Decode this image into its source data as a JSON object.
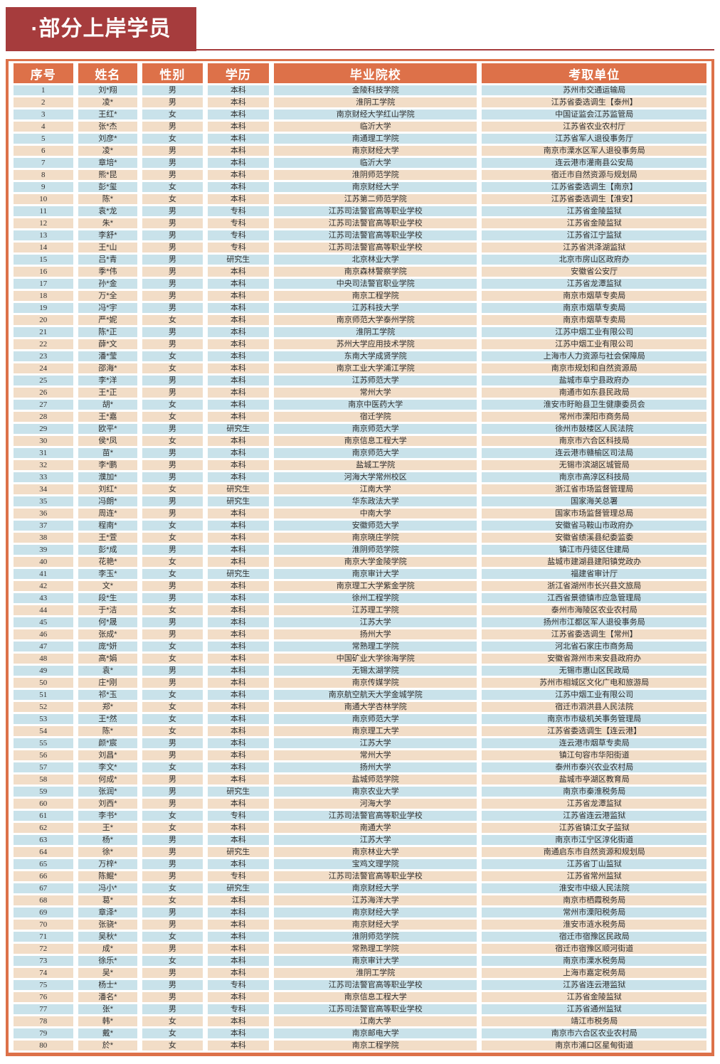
{
  "page_title": {
    "text": "·部分上岸学员"
  },
  "colors": {
    "banner_red": "#A63C3D",
    "header_orange": "#DD7149",
    "row_blue": "#C9E2EA",
    "row_peach": "#F2DDC7",
    "text_dark": "#303030"
  },
  "table": {
    "columns": [
      "序号",
      "姓名",
      "性别",
      "学历",
      "毕业院校",
      "考取单位"
    ],
    "column_widths": [
      "8.9%",
      "8.9%",
      "9.0%",
      "9.2%",
      "30.4%",
      "33.6%"
    ],
    "rows": [
      [
        "1",
        "刘*翔",
        "男",
        "本科",
        "金陵科技学院",
        "苏州市交通运输局"
      ],
      [
        "2",
        "凌*",
        "男",
        "本科",
        "淮阴工学院",
        "江苏省委选调生【泰州】"
      ],
      [
        "3",
        "王红*",
        "女",
        "本科",
        "南京财经大学红山学院",
        "中国证监会江苏监管局"
      ],
      [
        "4",
        "张*杰",
        "男",
        "本科",
        "临沂大学",
        "江苏省农业农村厅"
      ],
      [
        "5",
        "刘彦*",
        "女",
        "本科",
        "南通理工学院",
        "江苏省军人退役事务厅"
      ],
      [
        "6",
        "凌*",
        "男",
        "本科",
        "南京财经大学",
        "南京市溧水区军人退役事务局"
      ],
      [
        "7",
        "章培*",
        "男",
        "本科",
        "临沂大学",
        "连云港市灌南县公安局"
      ],
      [
        "8",
        "熊*昆",
        "男",
        "本科",
        "淮阴师范学院",
        "宿迁市自然资源与规划局"
      ],
      [
        "9",
        "彭*玺",
        "女",
        "本科",
        "南京财经大学",
        "江苏省委选调生【南京】"
      ],
      [
        "10",
        "陈*",
        "女",
        "本科",
        "江苏第二师范学院",
        "江苏省委选调生【淮安】"
      ],
      [
        "11",
        "袁*龙",
        "男",
        "专科",
        "江苏司法警官高等职业学校",
        "江苏省金陵监狱"
      ],
      [
        "12",
        "朱*",
        "男",
        "专科",
        "江苏司法警官高等职业学校",
        "江苏省金陵监狱"
      ],
      [
        "13",
        "李舒*",
        "男",
        "专科",
        "江苏司法警官高等职业学校",
        "江苏省江宁监狱"
      ],
      [
        "14",
        "王*山",
        "男",
        "专科",
        "江苏司法警官高等职业学校",
        "江苏省洪泽湖监狱"
      ],
      [
        "15",
        "吕*青",
        "男",
        "研究生",
        "北京林业大学",
        "北京市房山区政府办"
      ],
      [
        "16",
        "季*伟",
        "男",
        "本科",
        "南京森林警察学院",
        "安徽省公安厅"
      ],
      [
        "17",
        "孙*金",
        "男",
        "本科",
        "中央司法警官职业学院",
        "江苏省龙潭监狱"
      ],
      [
        "18",
        "万*全",
        "男",
        "本科",
        "南京工程学院",
        "南京市烟草专卖局"
      ],
      [
        "19",
        "冯*宇",
        "男",
        "本科",
        "江苏科技大学",
        "南京市烟草专卖局"
      ],
      [
        "20",
        "严*妮",
        "女",
        "本科",
        "南京师范大学泰州学院",
        "南京市烟草专卖局"
      ],
      [
        "21",
        "陈*正",
        "男",
        "本科",
        "淮阴工学院",
        "江苏中烟工业有限公司"
      ],
      [
        "22",
        "薛*文",
        "男",
        "本科",
        "苏州大学应用技术学院",
        "江苏中烟工业有限公司"
      ],
      [
        "23",
        "潘*莹",
        "女",
        "本科",
        "东南大学成贤学院",
        "上海市人力资源与社会保障局"
      ],
      [
        "24",
        "邵海*",
        "女",
        "本科",
        "南京工业大学浦江学院",
        "南京市规划和自然资源局"
      ],
      [
        "25",
        "李*洋",
        "男",
        "本科",
        "江苏师范大学",
        "盐城市阜宁县政府办"
      ],
      [
        "26",
        "王*正",
        "男",
        "本科",
        "常州大学",
        "南通市如东县民政局"
      ],
      [
        "27",
        "胡*",
        "女",
        "本科",
        "南京中医药大学",
        "淮安市盱眙县卫生健康委员会"
      ],
      [
        "28",
        "王*嘉",
        "女",
        "本科",
        "宿迁学院",
        "常州市溧阳市商务局"
      ],
      [
        "29",
        "欧平*",
        "男",
        "研究生",
        "南京师范大学",
        "徐州市鼓楼区人民法院"
      ],
      [
        "30",
        "侯*凤",
        "女",
        "本科",
        "南京信息工程大学",
        "南京市六合区科技局"
      ],
      [
        "31",
        "苗*",
        "男",
        "本科",
        "南京师范大学",
        "连云港市赣榆区司法局"
      ],
      [
        "32",
        "李*鹏",
        "男",
        "本科",
        "盐城工学院",
        "无锡市滨湖区城管局"
      ],
      [
        "33",
        "濮加*",
        "男",
        "本科",
        "河海大学常州校区",
        "南京市高淳区科技局"
      ],
      [
        "34",
        "刘红*",
        "女",
        "研究生",
        "江南大学",
        "浙江省市场监督管理局"
      ],
      [
        "35",
        "冯朗*",
        "男",
        "研究生",
        "华东政法大学",
        "国家海关总署"
      ],
      [
        "36",
        "周连*",
        "男",
        "本科",
        "中南大学",
        "国家市场监督管理总局"
      ],
      [
        "37",
        "程南*",
        "女",
        "本科",
        "安徽师范大学",
        "安徽省马鞍山市政府办"
      ],
      [
        "38",
        "王*萱",
        "女",
        "本科",
        "南京晓庄学院",
        "安徽省绩溪县纪委监委"
      ],
      [
        "39",
        "彭*成",
        "男",
        "本科",
        "淮阴师范学院",
        "镇江市丹徒区住建局"
      ],
      [
        "40",
        "花艳*",
        "女",
        "本科",
        "南京大学金陵学院",
        "盐城市建湖县建阳镇党政办"
      ],
      [
        "41",
        "李玉*",
        "女",
        "研究生",
        "南京审计大学",
        "福建省审计厅"
      ],
      [
        "42",
        "文*",
        "男",
        "本科",
        "南京理工大学紫金学院",
        "浙江省湖州市长兴县文旅局"
      ],
      [
        "43",
        "段*生",
        "男",
        "本科",
        "徐州工程学院",
        "江西省景德镇市应急管理局"
      ],
      [
        "44",
        "于*洁",
        "女",
        "本科",
        "江苏理工学院",
        "泰州市海陵区农业农村局"
      ],
      [
        "45",
        "何*晟",
        "男",
        "本科",
        "江苏大学",
        "扬州市江都区军人退役事务局"
      ],
      [
        "46",
        "张成*",
        "男",
        "本科",
        "扬州大学",
        "江苏省委选调生【常州】"
      ],
      [
        "47",
        "庞*妍",
        "女",
        "本科",
        "常熟理工学院",
        "河北省石家庄市商务局"
      ],
      [
        "48",
        "高*娟",
        "女",
        "本科",
        "中国矿业大学徐海学院",
        "安徽省滁州市来安县政府办"
      ],
      [
        "49",
        "袁*",
        "男",
        "本科",
        "无锡太湖学院",
        "无锡市惠山区民政局"
      ],
      [
        "50",
        "庄*刚",
        "男",
        "本科",
        "南京传媒学院",
        "苏州市相城区文化广电和旅游局"
      ],
      [
        "51",
        "祁*玉",
        "女",
        "本科",
        "南京航空航天大学金城学院",
        "江苏中烟工业有限公司"
      ],
      [
        "52",
        "郑*",
        "女",
        "本科",
        "南通大学杏林学院",
        "宿迁市泗洪县人民法院"
      ],
      [
        "53",
        "王*然",
        "女",
        "本科",
        "南京师范大学",
        "南京市市级机关事务管理局"
      ],
      [
        "54",
        "陈*",
        "女",
        "本科",
        "南京理工大学",
        "江苏省委选调生【连云港】"
      ],
      [
        "55",
        "颜*宸",
        "男",
        "本科",
        "江苏大学",
        "连云港市烟草专卖局"
      ],
      [
        "56",
        "刘昌*",
        "男",
        "本科",
        "常州大学",
        "镇江句容市华阳街道"
      ],
      [
        "57",
        "李文*",
        "女",
        "本科",
        "扬州大学",
        "泰州市泰兴农业农村局"
      ],
      [
        "58",
        "何成*",
        "男",
        "本科",
        "盐城师范学院",
        "盐城市亭湖区教育局"
      ],
      [
        "59",
        "张润*",
        "男",
        "研究生",
        "南京农业大学",
        "南京市秦淮税务局"
      ],
      [
        "60",
        "刘西*",
        "男",
        "本科",
        "河海大学",
        "江苏省龙潭监狱"
      ],
      [
        "61",
        "李书*",
        "女",
        "专科",
        "江苏司法警官高等职业学校",
        "江苏省连云港监狱"
      ],
      [
        "62",
        "王*",
        "女",
        "本科",
        "南通大学",
        "江苏省镇江女子监狱"
      ],
      [
        "63",
        "杨*",
        "男",
        "本科",
        "江苏大学",
        "南京市江宁区淳化街道"
      ],
      [
        "64",
        "徐*",
        "男",
        "研究生",
        "南京林业大学",
        "南通启东市自然资源和规划局"
      ],
      [
        "65",
        "万梓*",
        "男",
        "本科",
        "宝鸡文理学院",
        "江苏省丁山监狱"
      ],
      [
        "66",
        "陈鲲*",
        "男",
        "专科",
        "江苏司法警官高等职业学校",
        "江苏省常州监狱"
      ],
      [
        "67",
        "冯小*",
        "女",
        "研究生",
        "南京财经大学",
        "淮安市中级人民法院"
      ],
      [
        "68",
        "葛*",
        "女",
        "本科",
        "江苏海洋大学",
        "南京市栖霞税务局"
      ],
      [
        "69",
        "章泽*",
        "男",
        "本科",
        "南京财经大学",
        "常州市溧阳税务局"
      ],
      [
        "70",
        "张骁*",
        "男",
        "本科",
        "南京财经大学",
        "淮安市涟水税务局"
      ],
      [
        "71",
        "吴秋*",
        "女",
        "本科",
        "淮阴师范学院",
        "宿迁市宿豫区民政局"
      ],
      [
        "72",
        "成*",
        "男",
        "本科",
        "常熟理工学院",
        "宿迁市宿豫区顺河街道"
      ],
      [
        "73",
        "徐乐*",
        "女",
        "本科",
        "南京审计大学",
        "南京市溧水税务局"
      ],
      [
        "74",
        "吴*",
        "男",
        "本科",
        "淮阴工学院",
        "上海市嘉定税务局"
      ],
      [
        "75",
        "杨士*",
        "男",
        "专科",
        "江苏司法警官高等职业学校",
        "江苏省连云港监狱"
      ],
      [
        "76",
        "潘名*",
        "男",
        "本科",
        "南京信息工程大学",
        "江苏省金陵监狱"
      ],
      [
        "77",
        "张*",
        "男",
        "专科",
        "江苏司法警官高等职业学校",
        "江苏省通州监狱"
      ],
      [
        "78",
        "韩*",
        "女",
        "本科",
        "江南大学",
        "靖江市税务局"
      ],
      [
        "79",
        "戴*",
        "女",
        "本科",
        "南京邮电大学",
        "南京市六合区农业农村局"
      ],
      [
        "80",
        "於*",
        "女",
        "本科",
        "南京工程学院",
        "南京市浦口区星甸街道"
      ]
    ]
  }
}
